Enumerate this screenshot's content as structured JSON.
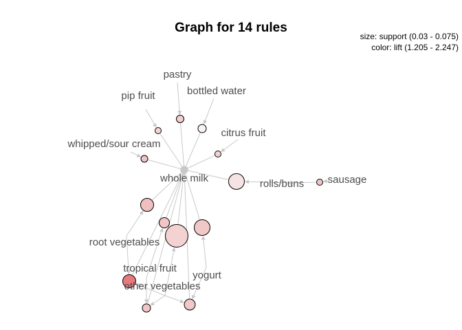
{
  "title": "Graph for 14 rules",
  "legend": {
    "size_text": "size: support (0.03 - 0.075)",
    "color_text": "color: lift (1.205 - 2.247)"
  },
  "colors": {
    "edge": "#c8c8c8",
    "label": "#4d4d4d",
    "node_stroke": "#000000"
  },
  "items": [
    {
      "id": "whole_milk",
      "label": "whole milk"
    },
    {
      "id": "pastry",
      "label": "pastry"
    },
    {
      "id": "bottled_water",
      "label": "bottled water"
    },
    {
      "id": "pip_fruit",
      "label": "pip fruit"
    },
    {
      "id": "citrus_fruit",
      "label": "citrus fruit"
    },
    {
      "id": "whipped_sour_cream",
      "label": "whipped/sour cream"
    },
    {
      "id": "rolls_buns",
      "label": "rolls/buns"
    },
    {
      "id": "sausage",
      "label": "sausage"
    },
    {
      "id": "root_vegetables",
      "label": "root vegetables"
    },
    {
      "id": "tropical_fruit",
      "label": "tropical fruit"
    },
    {
      "id": "other_vegetables",
      "label": "other vegetables"
    },
    {
      "id": "yogurt",
      "label": "yogurt"
    }
  ],
  "rules": [
    {
      "id": "r1",
      "lhs": [
        "pip_fruit"
      ],
      "rhs": "whole_milk",
      "fill": "#f6d4d4"
    },
    {
      "id": "r2",
      "lhs": [
        "pastry"
      ],
      "rhs": "whole_milk",
      "fill": "#f4cfcf"
    },
    {
      "id": "r3",
      "lhs": [
        "bottled_water"
      ],
      "rhs": "whole_milk",
      "fill": "#faf3f3"
    },
    {
      "id": "r4",
      "lhs": [
        "citrus_fruit"
      ],
      "rhs": "whole_milk",
      "fill": "#f5d1d1"
    },
    {
      "id": "r5",
      "lhs": [
        "whipped_sour_cream"
      ],
      "rhs": "whole_milk",
      "fill": "#f2c4c4"
    },
    {
      "id": "r6",
      "lhs": [
        "rolls_buns"
      ],
      "rhs": "whole_milk",
      "fill": "#f6e4e4"
    },
    {
      "id": "r7",
      "lhs": [
        "sausage"
      ],
      "rhs": "rolls_buns",
      "fill": "#f2c4c4"
    },
    {
      "id": "r8",
      "lhs": [
        "root_vegetables"
      ],
      "rhs": "whole_milk",
      "fill": "#f0bfbf"
    },
    {
      "id": "r9",
      "lhs": [
        "tropical_fruit"
      ],
      "rhs": "whole_milk",
      "fill": "#f2c6c6"
    },
    {
      "id": "r10",
      "lhs": [
        "other_vegetables"
      ],
      "rhs": "whole_milk",
      "fill": "#f4d2d2"
    },
    {
      "id": "r11",
      "lhs": [
        "yogurt"
      ],
      "rhs": "whole_milk",
      "fill": "#f2c7c7"
    },
    {
      "id": "r12",
      "lhs": [
        "root_vegetables",
        "other_vegetables"
      ],
      "rhs": "whole_milk",
      "fill": "#e8797f"
    },
    {
      "id": "r13",
      "lhs": [
        "tropical_fruit",
        "other_vegetables"
      ],
      "rhs": "whole_milk",
      "fill": "#f2c6c6"
    },
    {
      "id": "r14",
      "lhs": [
        "yogurt",
        "other_vegetables"
      ],
      "rhs": "whole_milk",
      "fill": "#f2c7c7"
    }
  ]
}
